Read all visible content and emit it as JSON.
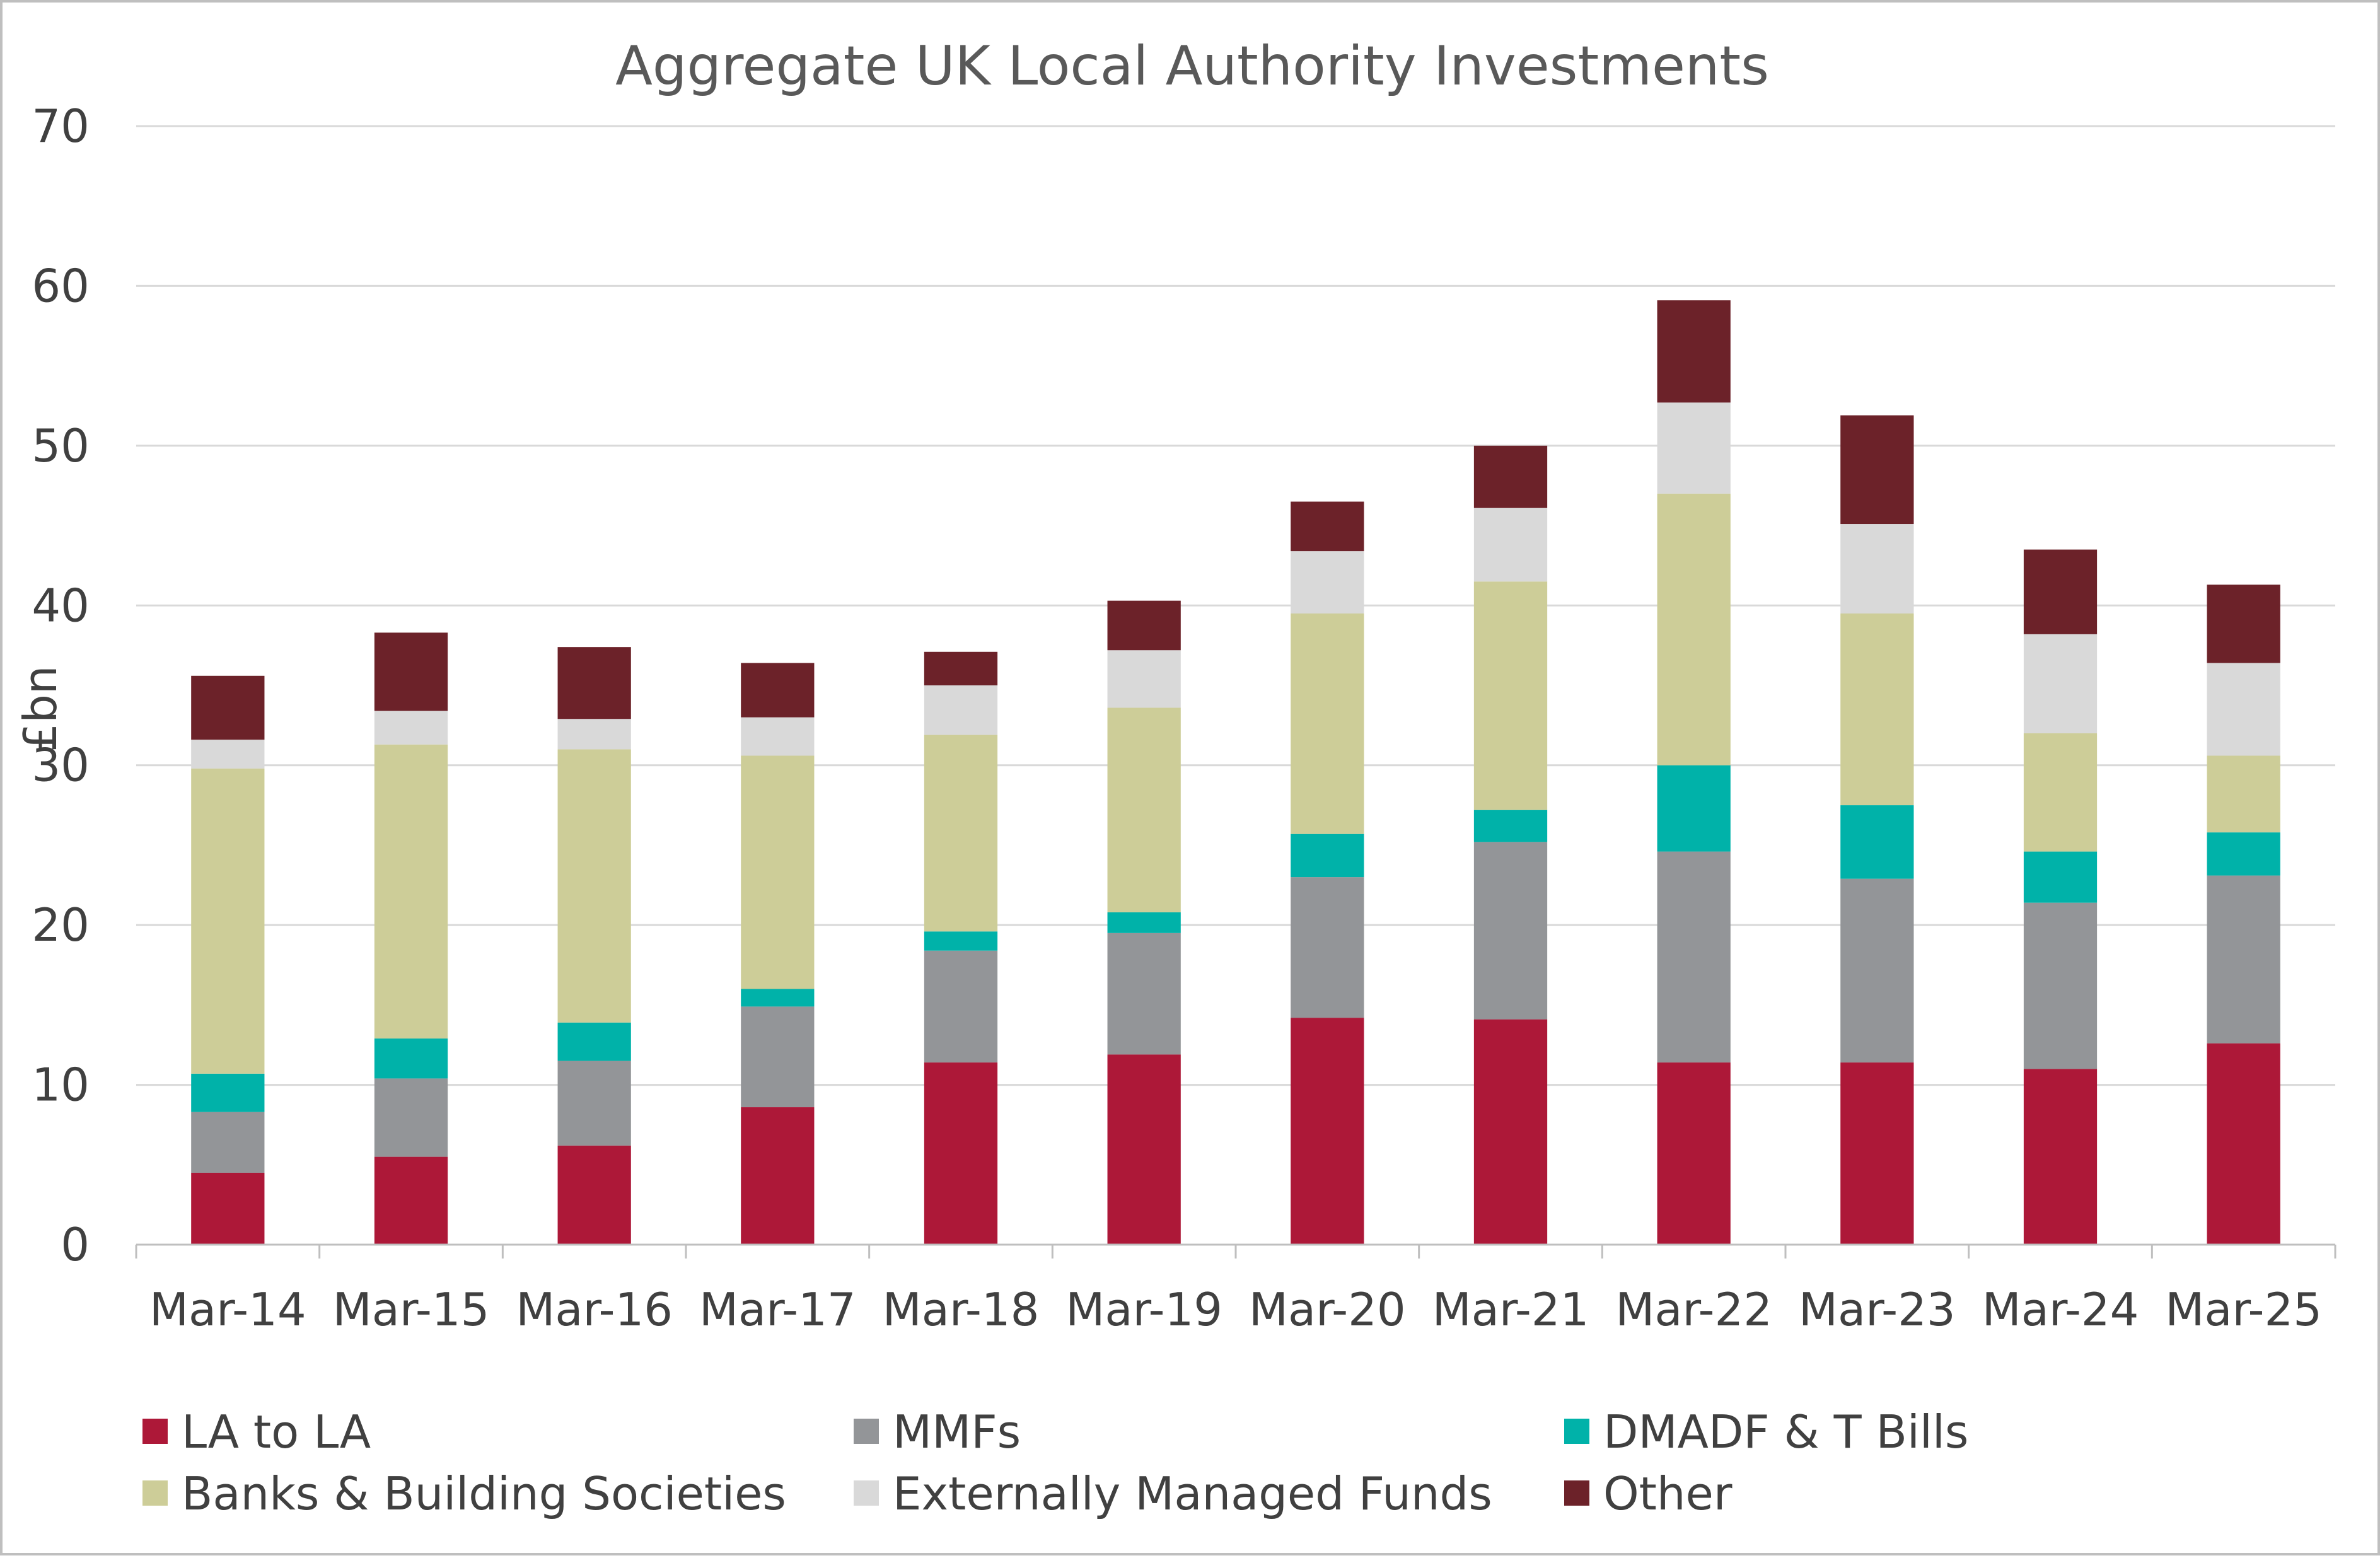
{
  "chart_data": {
    "type": "bar",
    "stacked": true,
    "title": "Aggregate UK Local Authority Investments",
    "xlabel": "",
    "ylabel": "£bn",
    "ylim": [
      0,
      70
    ],
    "yticks": [
      0,
      10,
      20,
      30,
      40,
      50,
      60,
      70
    ],
    "grid": true,
    "legend_position": "bottom",
    "categories": [
      "Mar-14",
      "Mar-15",
      "Mar-16",
      "Mar-17",
      "Mar-18",
      "Mar-19",
      "Mar-20",
      "Mar-21",
      "Mar-22",
      "Mar-23",
      "Mar-24",
      "Mar-25"
    ],
    "series": [
      {
        "name": "LA to LA",
        "color": "#ad1838",
        "values": [
          4.5,
          5.5,
          6.2,
          8.6,
          11.4,
          11.9,
          14.2,
          14.1,
          11.4,
          11.4,
          11.0,
          12.6
        ]
      },
      {
        "name": "MMFs",
        "color": "#939598",
        "values": [
          3.8,
          4.9,
          5.3,
          6.3,
          7.0,
          7.6,
          8.8,
          11.1,
          13.2,
          11.5,
          10.4,
          10.5
        ]
      },
      {
        "name": "DMADF & T Bills",
        "color": "#00b2a9",
        "values": [
          2.4,
          2.5,
          2.4,
          1.1,
          1.2,
          1.3,
          2.7,
          2.0,
          5.4,
          4.6,
          3.2,
          2.7
        ]
      },
      {
        "name": "Banks & Building Societies",
        "color": "#cdcd98",
        "values": [
          19.1,
          18.4,
          17.1,
          14.6,
          12.3,
          12.8,
          13.8,
          14.3,
          17.0,
          12.0,
          7.4,
          4.8
        ]
      },
      {
        "name": "Externally Managed Funds",
        "color": "#d9d9d9",
        "values": [
          1.8,
          2.1,
          1.9,
          2.4,
          3.1,
          3.6,
          3.9,
          4.6,
          5.7,
          5.6,
          6.2,
          5.8
        ]
      },
      {
        "name": "Other",
        "color": "#6c2229",
        "values": [
          4.0,
          4.9,
          4.5,
          3.4,
          2.1,
          3.1,
          3.1,
          3.9,
          6.4,
          6.8,
          5.3,
          4.9
        ]
      }
    ],
    "colors": {
      "gridline": "#d9d9d9",
      "axis": "#bfbfbf",
      "text": "#404040",
      "title": "#595959",
      "frame": "#bfbfbf"
    }
  }
}
